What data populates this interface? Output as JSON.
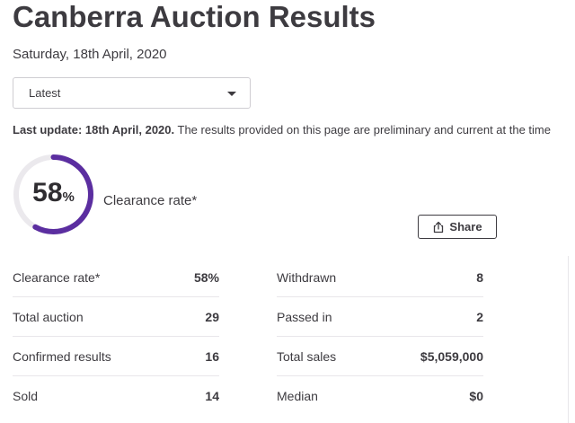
{
  "header": {
    "title": "Canberra Auction Results",
    "date": "Saturday, 18th April, 2020"
  },
  "filter": {
    "selected": "Latest"
  },
  "update": {
    "label": "Last update: 18th April, 2020.",
    "text": " The results provided on this page are preliminary and current at the time"
  },
  "gauge": {
    "value": "58",
    "unit": "%",
    "label": "Clearance rate*",
    "progress": 0.58,
    "color": "#5b2ea0"
  },
  "share": {
    "label": "Share",
    "icon": "share-icon"
  },
  "stats_left": [
    {
      "key": "Clearance rate*",
      "value": "58%"
    },
    {
      "key": "Total auction",
      "value": "29"
    },
    {
      "key": "Confirmed results",
      "value": "16"
    },
    {
      "key": "Sold",
      "value": "14"
    }
  ],
  "stats_right": [
    {
      "key": "Withdrawn",
      "value": "8"
    },
    {
      "key": "Passed in",
      "value": "2"
    },
    {
      "key": "Total sales",
      "value": "$5,059,000"
    },
    {
      "key": "Median",
      "value": "$0"
    }
  ]
}
